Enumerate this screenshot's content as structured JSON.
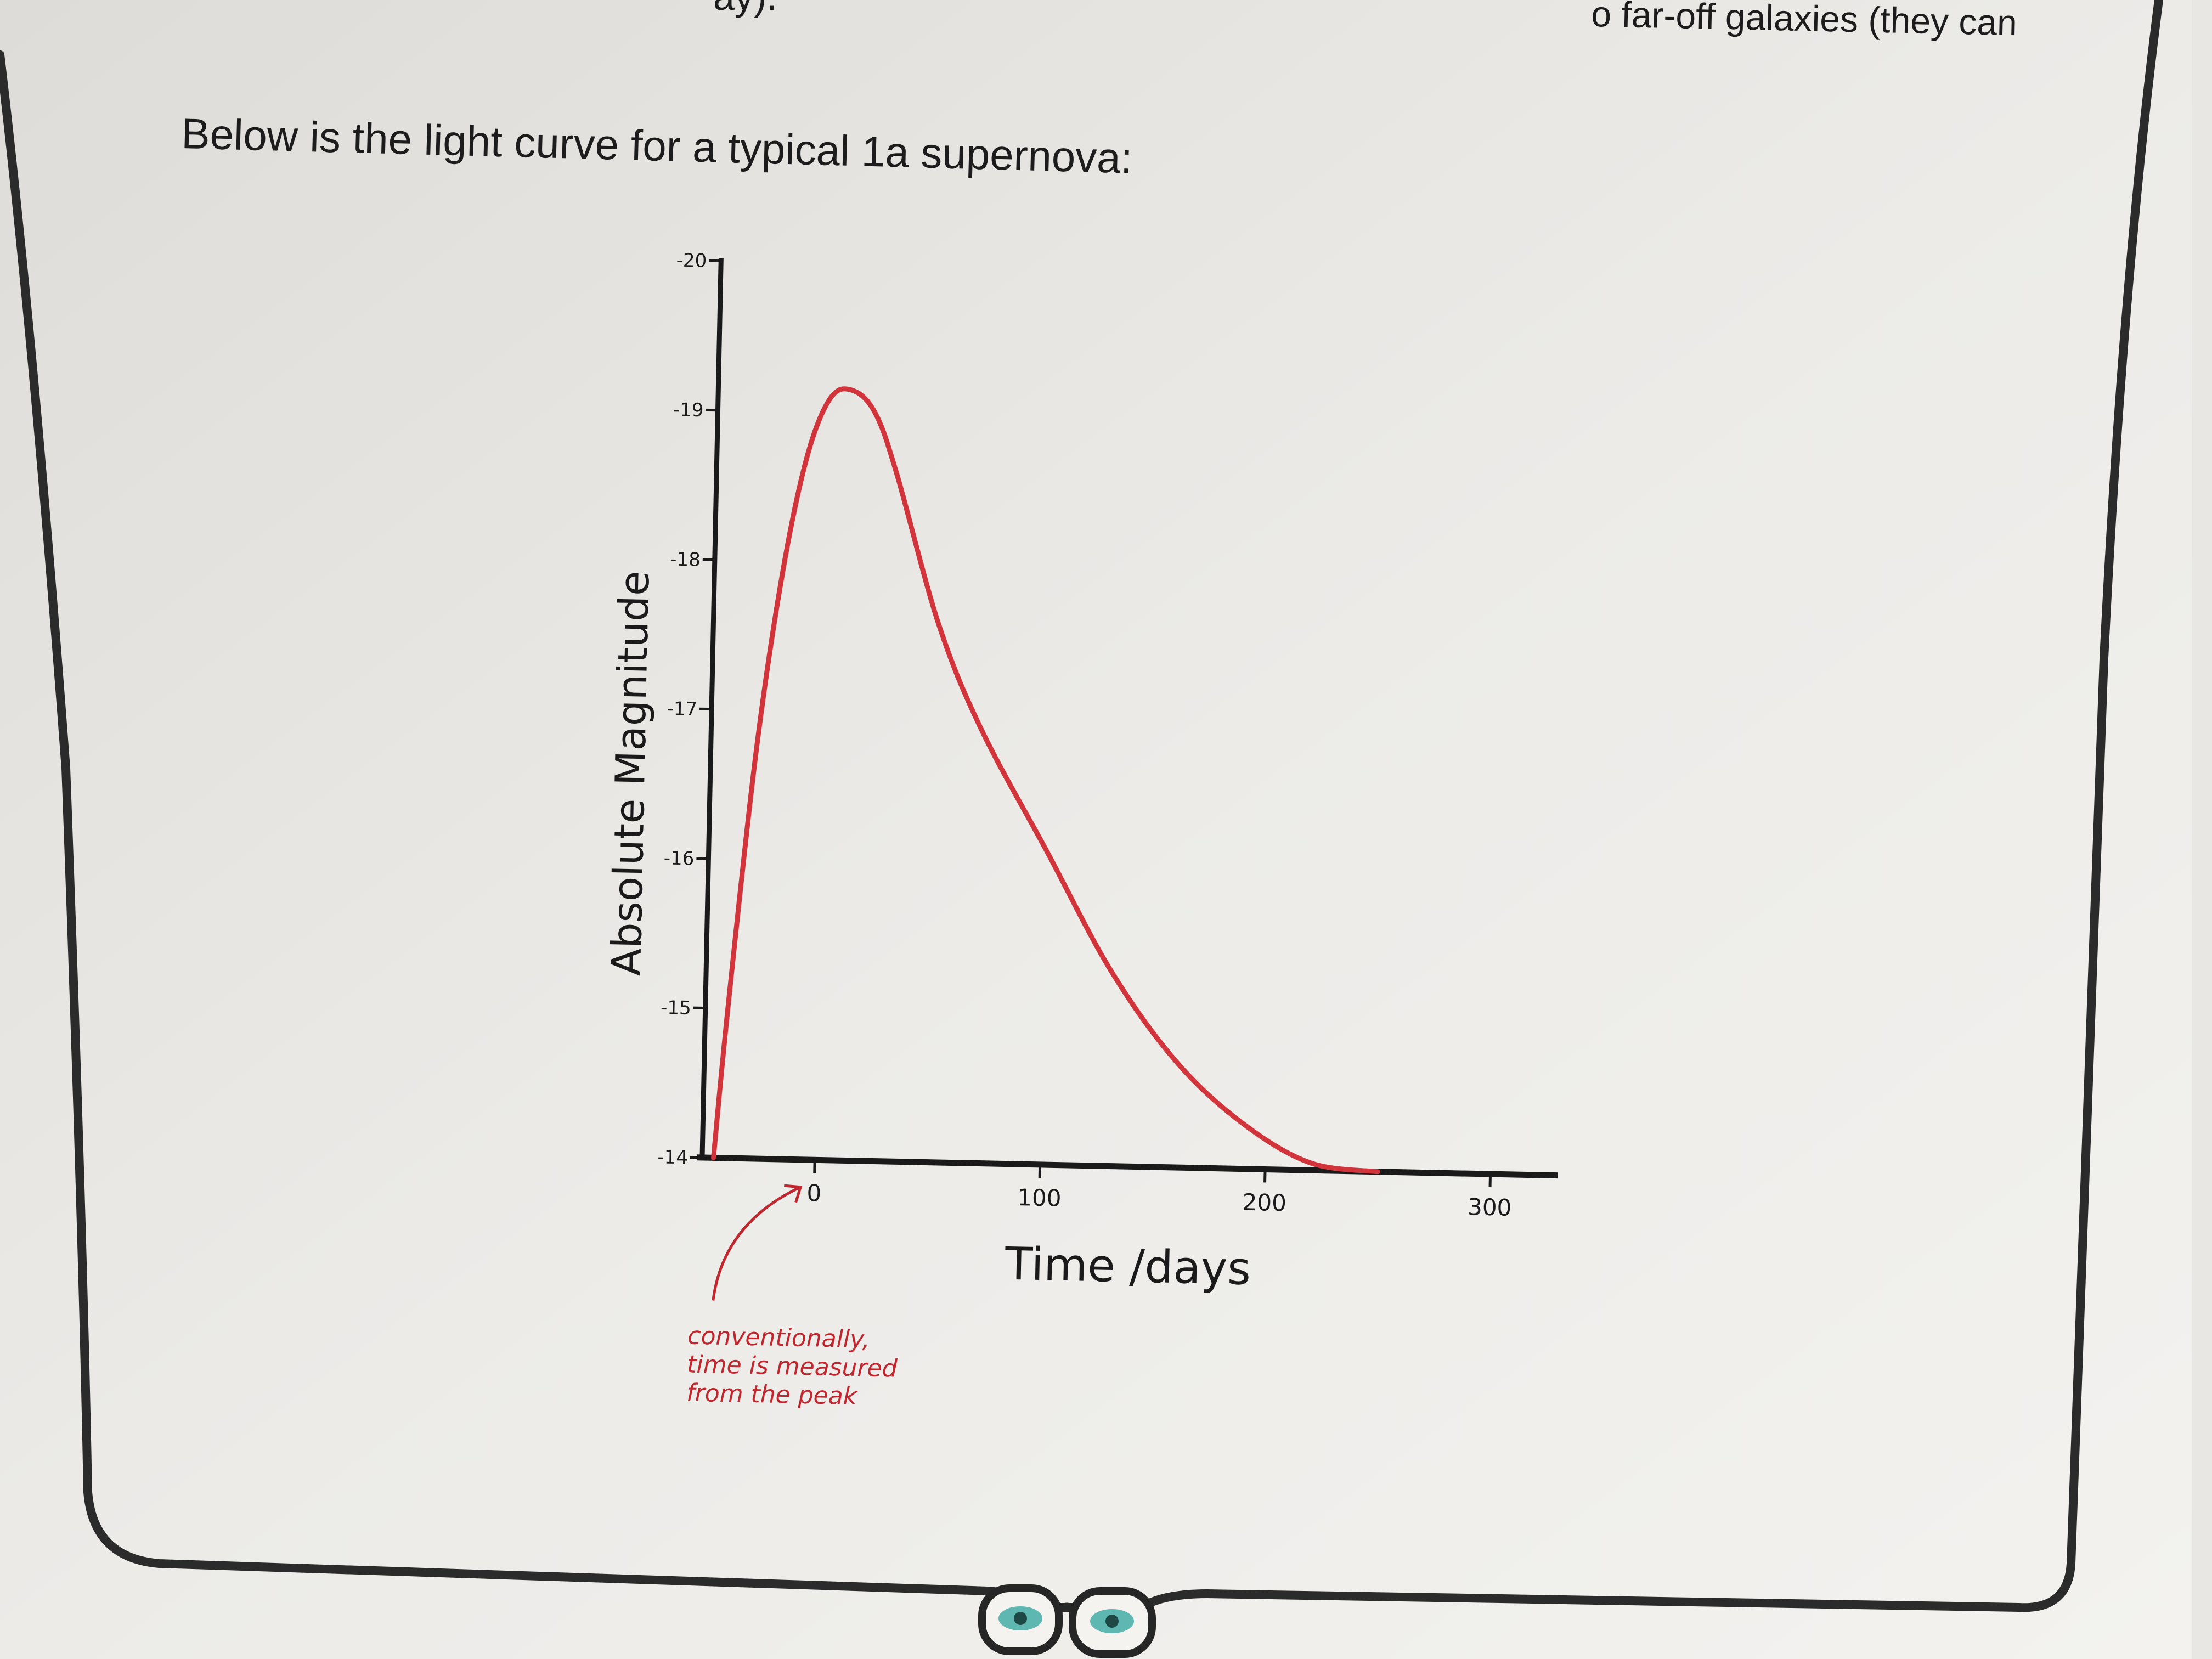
{
  "page": {
    "top_left_text": "ay).",
    "top_right_text": "o far-off galaxies (they can",
    "intro_text": "Below is the light curve for a typical 1a supernova:"
  },
  "chart_data": {
    "type": "line",
    "title": "",
    "xlabel": "Time /days",
    "ylabel": "Absolute Magnitude",
    "xlim": [
      -50,
      330
    ],
    "ylim": [
      -14,
      -20
    ],
    "x_ticks": [
      0,
      100,
      200,
      300
    ],
    "x_tick_labels": [
      "0",
      "100",
      "200",
      "300"
    ],
    "y_ticks": [
      -20,
      -19,
      -18,
      -17,
      -16,
      -15,
      -14
    ],
    "y_tick_labels": [
      "-20",
      "-19",
      "-18",
      "-17",
      "-16",
      "-15",
      "-14"
    ],
    "y_inverted": true,
    "grid": false,
    "series": [
      {
        "color": "#d2343c",
        "x": [
          -45,
          -40,
          -30,
          -20,
          -10,
          0,
          10,
          20,
          30,
          50,
          70,
          100,
          130,
          160,
          190,
          220,
          250
        ],
        "y": [
          -14,
          -15,
          -16.7,
          -17.9,
          -18.7,
          -19.1,
          -19.15,
          -19.0,
          -18.6,
          -17.6,
          -16.9,
          -16.1,
          -15.3,
          -14.7,
          -14.3,
          -14.05,
          -14.0
        ]
      }
    ],
    "annotations": [
      {
        "text_lines": [
          "conventionally,",
          "time is measured",
          "from the peak"
        ],
        "points_to_x": 0,
        "color": "#c0262e"
      }
    ]
  }
}
